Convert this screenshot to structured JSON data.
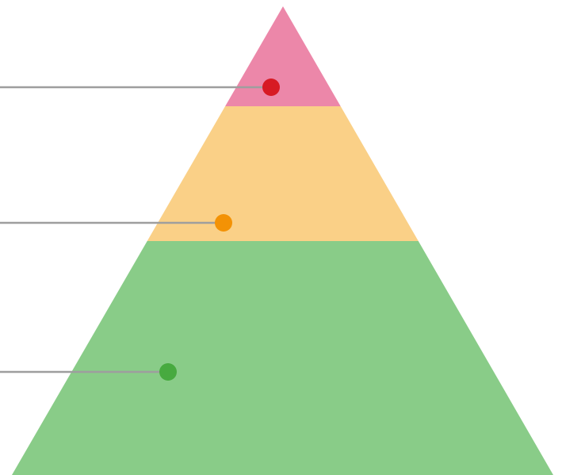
{
  "diagram": {
    "type": "pyramid",
    "background_color": "#ffffff",
    "connector_color": "#9e9e9e",
    "layers": [
      {
        "id": "top",
        "fill": "#ec87a9",
        "marker_color": "#d71a24"
      },
      {
        "id": "middle",
        "fill": "#fad087",
        "marker_color": "#f39205"
      },
      {
        "id": "bottom",
        "fill": "#89cc88",
        "marker_color": "#47aa3f"
      }
    ]
  }
}
